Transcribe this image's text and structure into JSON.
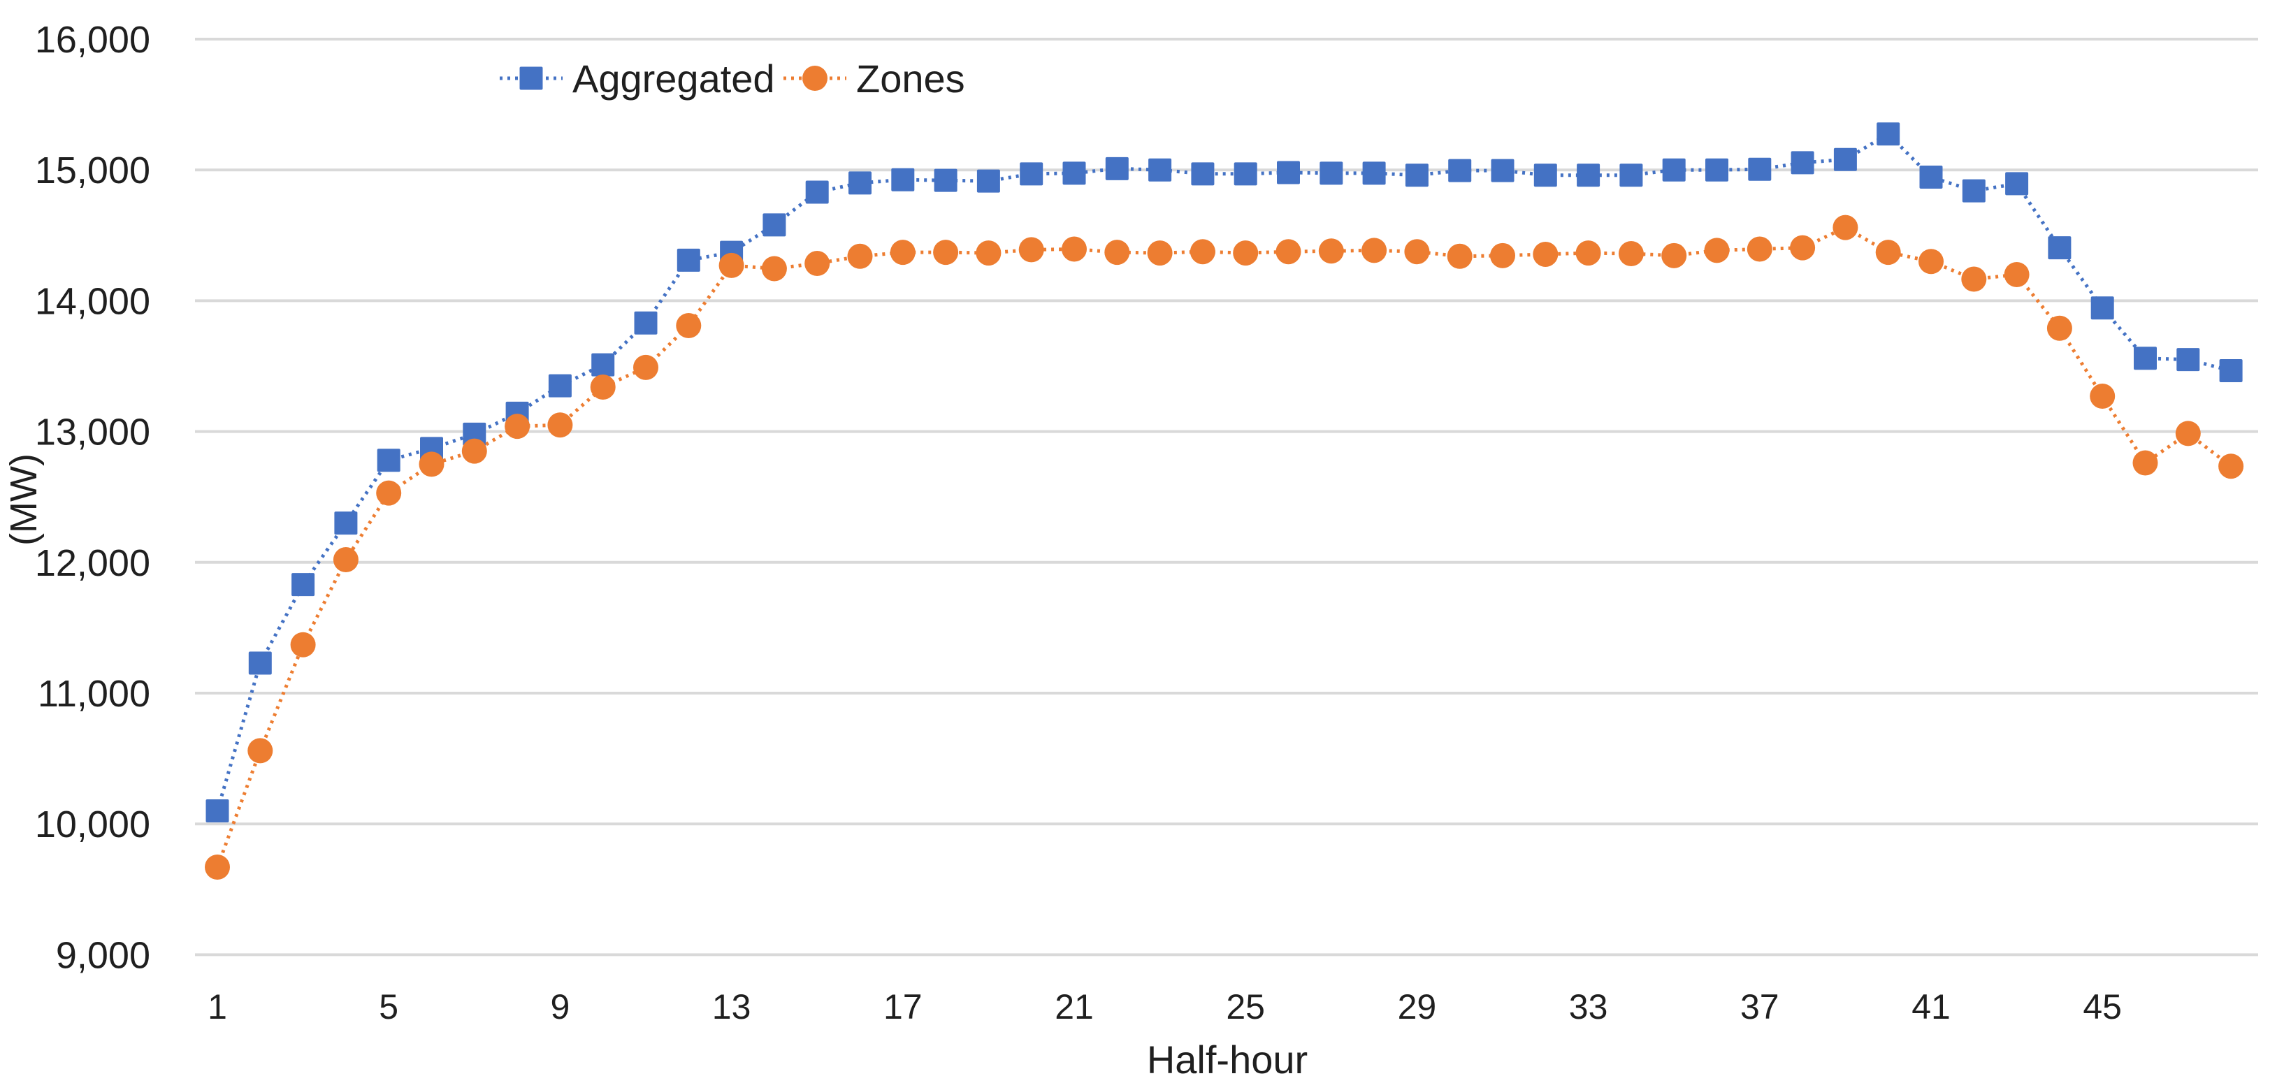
{
  "chart_data": {
    "type": "line",
    "title": "",
    "xlabel": "Half-hour",
    "ylabel": "(MW)",
    "x": [
      1,
      2,
      3,
      4,
      5,
      6,
      7,
      8,
      9,
      10,
      11,
      12,
      13,
      14,
      15,
      16,
      17,
      18,
      19,
      20,
      21,
      22,
      23,
      24,
      25,
      26,
      27,
      28,
      29,
      30,
      31,
      32,
      33,
      34,
      35,
      36,
      37,
      38,
      39,
      40,
      41,
      42,
      43,
      44,
      45,
      46,
      47,
      48
    ],
    "xticks": [
      1,
      5,
      9,
      13,
      17,
      21,
      25,
      29,
      33,
      37,
      41,
      45
    ],
    "ylim": [
      9000,
      16000
    ],
    "ytick_step": 1000,
    "ytick_labels": [
      "9,000",
      "10,000",
      "11,000",
      "12,000",
      "13,000",
      "14,000",
      "15,000",
      "16,000"
    ],
    "grid": "horizontal",
    "line_style": "dotted",
    "legend_position": "top-center",
    "series": [
      {
        "name": "Aggregated",
        "marker": "square",
        "color": "#4472C4",
        "values": [
          10100,
          11230,
          11830,
          12300,
          12780,
          12870,
          12980,
          13140,
          13350,
          13510,
          13830,
          14310,
          14370,
          14580,
          14830,
          14900,
          14925,
          14920,
          14915,
          14970,
          14975,
          15010,
          15000,
          14970,
          14970,
          14980,
          14975,
          14975,
          14960,
          14995,
          14995,
          14960,
          14960,
          14960,
          15000,
          15000,
          15005,
          15055,
          15080,
          15275,
          14945,
          14840,
          14895,
          14405,
          13945,
          13560,
          13550,
          13465
        ]
      },
      {
        "name": "Zones",
        "marker": "circle",
        "color": "#ED7D31",
        "values": [
          9670,
          10560,
          11370,
          12020,
          12530,
          12750,
          12850,
          13040,
          13050,
          13340,
          13490,
          13810,
          14270,
          14245,
          14285,
          14340,
          14370,
          14370,
          14365,
          14390,
          14395,
          14370,
          14365,
          14375,
          14365,
          14375,
          14380,
          14385,
          14375,
          14340,
          14345,
          14355,
          14365,
          14360,
          14345,
          14385,
          14395,
          14405,
          14560,
          14370,
          14300,
          14165,
          14200,
          13790,
          13270,
          12760,
          12985,
          12735
        ]
      }
    ]
  },
  "styles": {
    "gridline_color": "#D9D9D9",
    "text_color": "#1F1F1F",
    "background": "#FFFFFF"
  }
}
